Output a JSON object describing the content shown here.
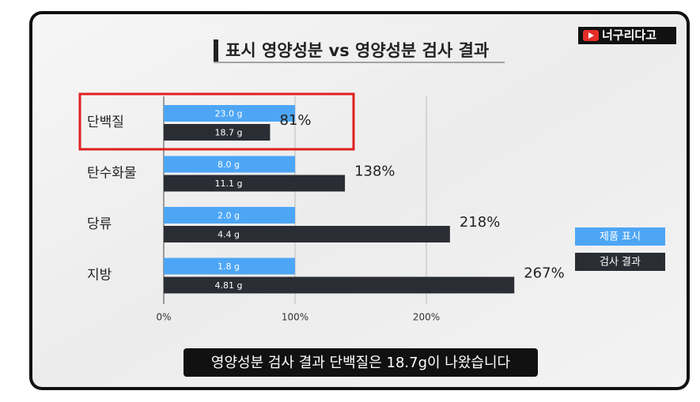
{
  "chart_data": {
    "type": "hbar",
    "title": "표시 영양성분 vs 영양성분 검사 결과",
    "logo": "너구리다고",
    "caption": "영양성분 검사 결과 단백질은 18.7g이 나왔습니다",
    "categories": [
      "단백질",
      "탄수화물",
      "당류",
      "지방"
    ],
    "series": [
      {
        "name": "제품 표시",
        "color": "#4da6f5",
        "values": [
          100,
          100,
          100,
          100
        ],
        "bar_labels": [
          "23.0 g",
          "8.0 g",
          "2.0 g",
          "1.8 g"
        ]
      },
      {
        "name": "검사 결과",
        "color": "#2b2d35",
        "values": [
          81,
          138,
          218,
          267
        ],
        "value_labels": [
          "81%",
          "138%",
          "218%",
          "267%"
        ],
        "bar_labels": [
          "18.7 g",
          "11.1 g",
          "4.4 g",
          "4.81 g"
        ]
      }
    ],
    "xlim": [
      0,
      280
    ],
    "xticks": [
      {
        "value": 0,
        "label": "0%"
      },
      {
        "value": 100,
        "label": "100%"
      },
      {
        "value": 200,
        "label": "200%"
      }
    ],
    "grid": true,
    "legend": "right",
    "highlight_category": 0
  }
}
